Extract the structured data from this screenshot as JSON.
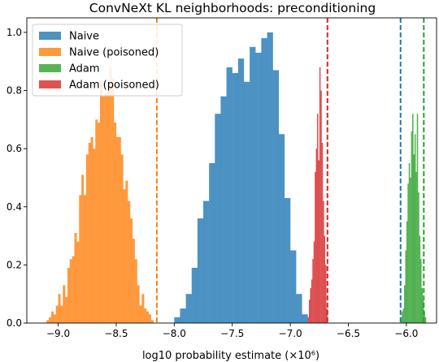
{
  "chart_data": {
    "type": "histogram",
    "title": "ConvNeXt KL neighborhoods: preconditioning",
    "xlabel": "log10 probability estimate (×10⁶)",
    "ylabel": "",
    "xlim": [
      -9.27,
      -5.74
    ],
    "ylim": [
      0,
      1.05
    ],
    "x_ticks": [
      -9.0,
      -8.5,
      -8.0,
      -7.5,
      -7.0,
      -6.5,
      -6.0
    ],
    "x_tick_labels": [
      "−9.0",
      "−8.5",
      "−8.0",
      "−7.5",
      "−7.0",
      "−6.5",
      "−6.0"
    ],
    "y_ticks": [
      0.0,
      0.2,
      0.4,
      0.6,
      0.8,
      1.0
    ],
    "y_tick_labels": [
      "0.0",
      "0.2",
      "0.4",
      "0.6",
      "0.8",
      "1.0"
    ],
    "grid": false,
    "legend_position": "top-left",
    "series": [
      {
        "name": "Naive",
        "color": "#1f77b4",
        "vline": -6.05,
        "bin_edges": [
          -8.0,
          -7.95,
          -7.9,
          -7.85,
          -7.8,
          -7.75,
          -7.7,
          -7.65,
          -7.6,
          -7.55,
          -7.5,
          -7.45,
          -7.4,
          -7.35,
          -7.3,
          -7.25,
          -7.2,
          -7.15,
          -7.1,
          -7.05,
          -7.0,
          -6.95,
          -6.9,
          -6.85
        ],
        "heights": [
          0.02,
          0.05,
          0.1,
          0.19,
          0.36,
          0.42,
          0.55,
          0.72,
          0.78,
          0.88,
          0.86,
          0.91,
          0.83,
          0.95,
          0.93,
          0.98,
          1.0,
          0.87,
          0.65,
          0.43,
          0.25,
          0.1,
          0.03
        ]
      },
      {
        "name": "Naive (poisoned)",
        "color": "#ff7f0e",
        "vline": -8.15,
        "bin_edges": [
          -9.1,
          -9.08,
          -9.06,
          -9.04,
          -9.02,
          -9.0,
          -8.98,
          -8.96,
          -8.94,
          -8.92,
          -8.9,
          -8.88,
          -8.86,
          -8.84,
          -8.82,
          -8.8,
          -8.78,
          -8.76,
          -8.74,
          -8.72,
          -8.7,
          -8.68,
          -8.66,
          -8.64,
          -8.62,
          -8.6,
          -8.58,
          -8.56,
          -8.54,
          -8.52,
          -8.5,
          -8.48,
          -8.46,
          -8.44,
          -8.42,
          -8.4,
          -8.38,
          -8.36,
          -8.34,
          -8.32,
          -8.3,
          -8.28,
          -8.26,
          -8.24,
          -8.22,
          -8.2,
          -8.18
        ],
        "heights": [
          0.01,
          0.02,
          0.04,
          0.03,
          0.06,
          0.1,
          0.06,
          0.13,
          0.09,
          0.19,
          0.22,
          0.23,
          0.31,
          0.28,
          0.44,
          0.51,
          0.44,
          0.58,
          0.62,
          0.64,
          0.6,
          0.7,
          0.69,
          0.83,
          0.78,
          0.79,
          0.8,
          0.88,
          0.84,
          0.69,
          0.64,
          0.64,
          0.58,
          0.46,
          0.49,
          0.42,
          0.36,
          0.29,
          0.22,
          0.13,
          0.06,
          0.1,
          0.05,
          0.04,
          0.03,
          0.01
        ]
      },
      {
        "name": "Adam",
        "color": "#2ca02c",
        "vline": -5.85,
        "bin_edges": [
          -6.05,
          -6.04,
          -6.03,
          -6.02,
          -6.01,
          -6.0,
          -5.99,
          -5.98,
          -5.97,
          -5.96,
          -5.95,
          -5.94,
          -5.93,
          -5.92,
          -5.91,
          -5.9,
          -5.89,
          -5.88,
          -5.87,
          -5.86,
          -5.85,
          -5.84,
          -5.83
        ],
        "heights": [
          0.02,
          0.04,
          0.05,
          0.13,
          0.25,
          0.35,
          0.48,
          0.55,
          0.5,
          0.66,
          0.72,
          0.58,
          0.65,
          0.52,
          0.72,
          0.45,
          0.3,
          0.22,
          0.12,
          0.08,
          0.04,
          0.02
        ]
      },
      {
        "name": "Adam (poisoned)",
        "color": "#d62728",
        "vline": -6.68,
        "bin_edges": [
          -6.85,
          -6.84,
          -6.83,
          -6.82,
          -6.81,
          -6.8,
          -6.79,
          -6.78,
          -6.77,
          -6.76,
          -6.75,
          -6.74,
          -6.73,
          -6.72,
          -6.71,
          -6.7,
          -6.69,
          -6.68
        ],
        "heights": [
          0.02,
          0.08,
          0.12,
          0.15,
          0.22,
          0.28,
          0.52,
          0.6,
          0.72,
          0.56,
          0.88,
          0.8,
          0.62,
          0.42,
          0.3,
          0.2,
          0.05
        ]
      }
    ]
  }
}
